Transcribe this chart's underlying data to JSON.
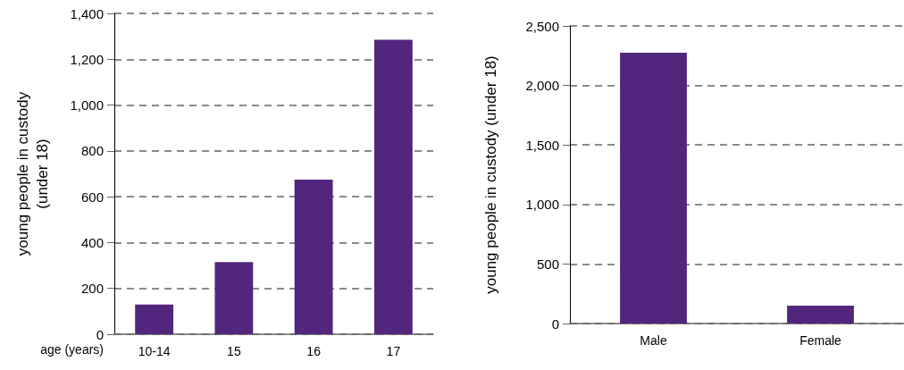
{
  "chart_data": [
    {
      "type": "bar",
      "xlabel": "age (years)",
      "ylabel": "young people in custody\n(under 18)",
      "categories": [
        "10-14",
        "15",
        "16",
        "17"
      ],
      "values": [
        130,
        315,
        675,
        1285
      ],
      "color": "#53267d",
      "ylim": [
        0,
        1400
      ],
      "yticks": [
        0,
        200,
        400,
        600,
        800,
        {
          "value": 1000,
          "label": "1,000"
        },
        {
          "value": 1200,
          "label": "1,200"
        },
        {
          "value": 1400,
          "label": "1,400"
        }
      ],
      "grid": "y"
    },
    {
      "type": "bar",
      "ylabel": "young people in custody (under 18)",
      "categories": [
        "Male",
        "Female"
      ],
      "values": [
        2275,
        150
      ],
      "color": "#53267d",
      "ylim": [
        0,
        2500
      ],
      "yticks": [
        0,
        500,
        {
          "value": 1000,
          "label": "1,000"
        },
        {
          "value": 1500,
          "label": "1,500"
        },
        {
          "value": 2000,
          "label": "2,000"
        },
        {
          "value": 2500,
          "label": "2,500"
        }
      ],
      "grid": "y"
    }
  ]
}
